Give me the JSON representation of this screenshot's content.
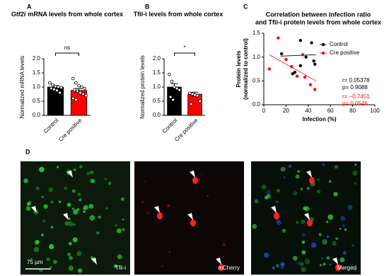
{
  "chart_data": [
    {
      "type": "bar",
      "panel": "A",
      "title_italic": "Gtf2i",
      "title": "mRNA levels from whole cortex",
      "y_label": "Normalized mRNA levels",
      "categories": [
        "Control",
        "Cre positive"
      ],
      "values": [
        1.0,
        0.88
      ],
      "errors": [
        0.05,
        0.07
      ],
      "colors": [
        "#000000",
        "#ff0000"
      ],
      "points": [
        [
          1.15,
          1.08,
          1.02,
          1.0,
          0.98,
          0.95,
          0.92,
          0.88,
          0.8
        ],
        [
          1.3,
          1.15,
          1.05,
          1.0,
          0.95,
          0.9,
          0.85,
          0.8,
          0.75,
          0.7,
          0.6,
          0.55
        ]
      ],
      "ylim": [
        0,
        2
      ],
      "yticks": [
        {
          "value": 0,
          "label": "0.0"
        },
        0.5,
        {
          "value": 1,
          "label": "1.0"
        },
        1.5,
        {
          "value": 2,
          "label": "2.0"
        }
      ],
      "annotation": "ns"
    },
    {
      "type": "bar",
      "panel": "B",
      "title": "Tfii-i levels from whole cortex",
      "y_label": "Normalized protein levels",
      "categories": [
        "Control",
        "Cre positive"
      ],
      "values": [
        1.0,
        0.75
      ],
      "errors": [
        0.12,
        0.07
      ],
      "colors": [
        "#000000",
        "#ff0000"
      ],
      "points": [
        [
          1.45,
          1.2,
          1.0,
          0.95,
          0.9,
          0.65,
          0.55
        ],
        [
          0.78,
          0.75,
          0.72,
          0.7,
          0.5,
          0.4
        ]
      ],
      "ylim": [
        0,
        2
      ],
      "yticks": [
        {
          "value": 0,
          "label": "0.0"
        },
        0.5,
        {
          "value": 1,
          "label": "1.0"
        },
        1.5,
        {
          "value": 2,
          "label": "2.0"
        }
      ],
      "annotation": "*"
    },
    {
      "type": "scatter",
      "panel": "C",
      "title_lines": [
        "Correlation between infection ratio",
        "and Tfii-i protein levels from whole cortex"
      ],
      "x_label": "Infection (%)",
      "y_label_lines": [
        "Protein levels",
        "(normalized to control)"
      ],
      "xlim": [
        0,
        100
      ],
      "xticks": [
        0,
        20,
        40,
        60,
        80,
        100
      ],
      "ylim": [
        0,
        1.5
      ],
      "yticks": [
        {
          "value": 0,
          "label": "0.0"
        },
        0.5,
        {
          "value": 1,
          "label": "1.0"
        },
        1.5
      ],
      "series": [
        {
          "name": "Control",
          "color": "#000000",
          "x": [
            16,
            26,
            28,
            33,
            33,
            38,
            43,
            45,
            46
          ],
          "y": [
            1.07,
            0.65,
            0.68,
            1.35,
            0.82,
            1.0,
            1.3,
            0.92,
            0.85
          ],
          "fit": {
            "x": [
              15,
              47
            ],
            "y": [
              1.02,
              1.05
            ]
          },
          "stats": [
            "r= 0.05378",
            "p= 0.9088"
          ]
        },
        {
          "name": "Cre positive",
          "color": "#ff0000",
          "x": [
            5,
            13,
            20,
            25,
            30,
            35,
            37,
            42,
            46
          ],
          "y": [
            0.75,
            1.4,
            0.95,
            0.8,
            0.6,
            1.05,
            0.58,
            0.42,
            0.32
          ],
          "fit": {
            "x": [
              5,
              47
            ],
            "y": [
              1.05,
              0.5
            ]
          },
          "stats": [
            "r= −0.7451",
            "p= 0.0546"
          ]
        }
      ]
    }
  ],
  "panel_d": {
    "letter": "D",
    "scale_bar": "75 µm",
    "images": [
      "Tfii-i",
      "mCherry",
      "Merged"
    ]
  }
}
